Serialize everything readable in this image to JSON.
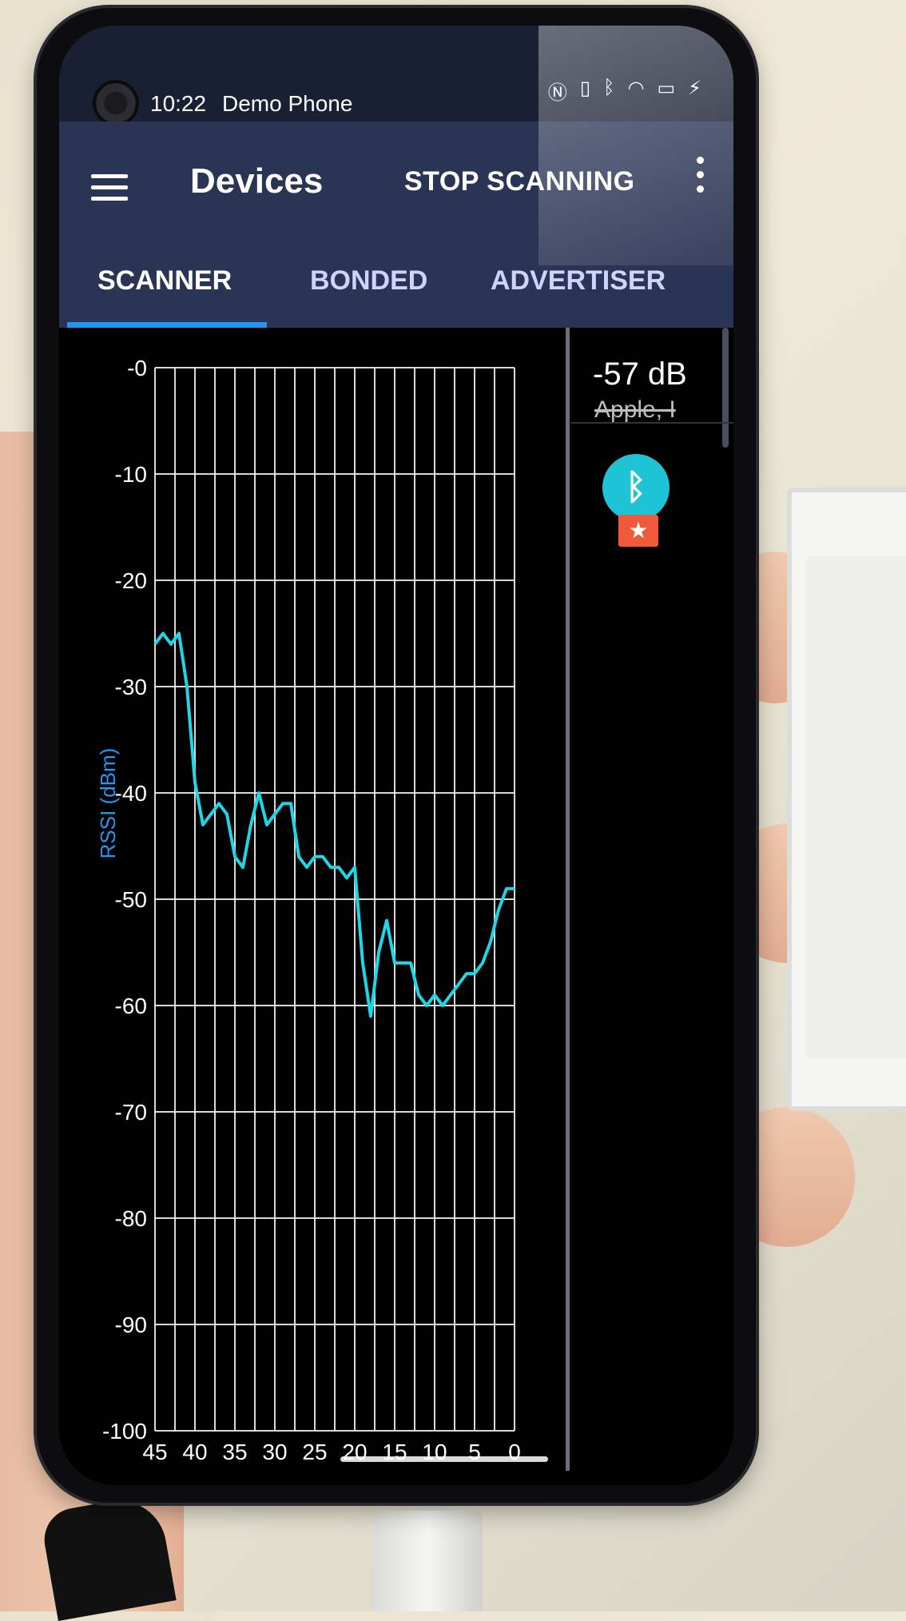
{
  "status_bar": {
    "time": "10:22",
    "carrier": "Demo Phone",
    "icons": [
      "nfc-icon",
      "vibrate-icon",
      "bluetooth-icon",
      "wifi-icon",
      "battery-icon",
      "charging-icon"
    ]
  },
  "app_bar": {
    "title": "Devices",
    "stop_scanning_label": "STOP SCANNING"
  },
  "tabs": [
    {
      "label": "SCANNER",
      "active": true
    },
    {
      "label": "BONDED",
      "active": false
    },
    {
      "label": "ADVERTISER",
      "active": false
    }
  ],
  "side_panel": {
    "rssi": "-57 dB",
    "device_name": "Apple, I"
  },
  "colors": {
    "app_bar": "#2a3454",
    "tab_indicator": "#2196f3",
    "line": "#1fd6e6",
    "grid": "#ffffff",
    "axis_label": "#2196f3"
  },
  "chart_data": {
    "type": "line",
    "xlabel": "",
    "ylabel": "RSSI (dBm)",
    "xlim": [
      45,
      0
    ],
    "ylim": [
      -100,
      0
    ],
    "x_ticks": [
      "45",
      "40",
      "35",
      "30",
      "25",
      "20",
      "15",
      "10",
      "5",
      "0"
    ],
    "y_ticks": [
      "-0",
      "-10",
      "-20",
      "-30",
      "-40",
      "-50",
      "-60",
      "-70",
      "-80",
      "-90",
      "-100"
    ],
    "grid": true,
    "series": [
      {
        "x": [
          45,
          44,
          43,
          42,
          41,
          40,
          39,
          38,
          37,
          36,
          35,
          34,
          33,
          32,
          31,
          30,
          29,
          28,
          27,
          26,
          25,
          24,
          23,
          22,
          21,
          20,
          19,
          18,
          17,
          16,
          15,
          14,
          13,
          12,
          11,
          10,
          9,
          8,
          7,
          6,
          5,
          4,
          3,
          2,
          1,
          0
        ],
        "values": [
          -26,
          -25,
          -26,
          -25,
          -30,
          -39,
          -43,
          -42,
          -41,
          -42,
          -46,
          -47,
          -43,
          -40,
          -43,
          -42,
          -41,
          -41,
          -46,
          -47,
          -46,
          -46,
          -47,
          -47,
          -48,
          -47,
          -56,
          -61,
          -55,
          -52,
          -56,
          -56,
          -56,
          -59,
          -60,
          -59,
          -60,
          -59,
          -58,
          -57,
          -57,
          -56,
          -54,
          -51,
          -49,
          -49
        ]
      }
    ]
  }
}
